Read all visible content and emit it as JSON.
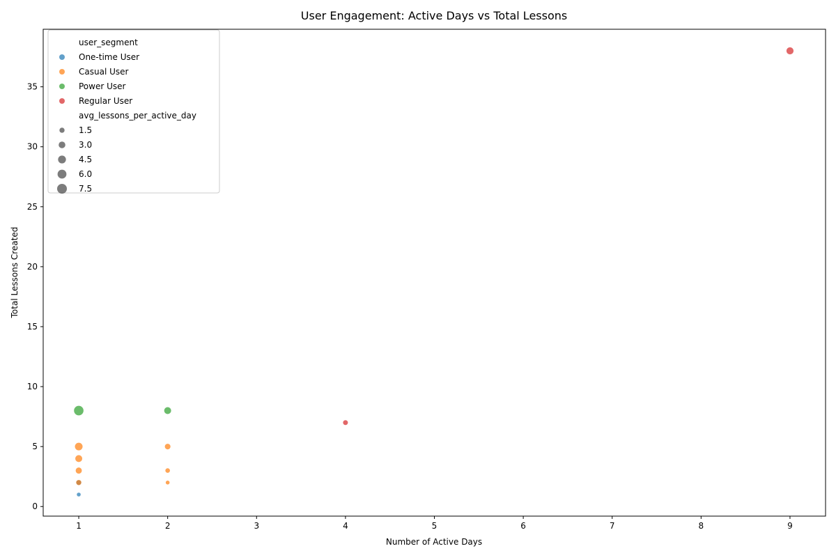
{
  "chart_data": {
    "type": "scatter",
    "title": "User Engagement: Active Days vs Total Lessons",
    "xlabel": "Number of Active Days",
    "ylabel": "Total Lessons Created",
    "xlim": [
      0.6,
      9.4
    ],
    "ylim": [
      -0.8,
      39.8
    ],
    "x_ticks": [
      1,
      2,
      3,
      4,
      5,
      6,
      7,
      8,
      9
    ],
    "y_ticks": [
      0,
      5,
      10,
      15,
      20,
      25,
      30,
      35
    ],
    "grid": false,
    "legend": {
      "placement": "top-left",
      "hue_title": "user_segment",
      "hue_entries": [
        {
          "label": "One-time User",
          "color": "#1f77b4"
        },
        {
          "label": "Casual User",
          "color": "#ff7f0e"
        },
        {
          "label": "Power User",
          "color": "#2ca02c"
        },
        {
          "label": "Regular User",
          "color": "#d62728"
        }
      ],
      "size_title": "avg_lessons_per_active_day",
      "size_entries": [
        {
          "label": "1.5",
          "value": 1.5
        },
        {
          "label": "3.0",
          "value": 3.0
        },
        {
          "label": "4.5",
          "value": 4.5
        },
        {
          "label": "6.0",
          "value": 6.0
        },
        {
          "label": "7.5",
          "value": 7.5
        }
      ]
    },
    "points": [
      {
        "x": 1,
        "y": 1,
        "segment": "One-time User",
        "size": 1
      },
      {
        "x": 1,
        "y": 2,
        "segment": "One-time User",
        "size": 2
      },
      {
        "x": 1,
        "y": 2,
        "segment": "Casual User",
        "size": 2
      },
      {
        "x": 1,
        "y": 3,
        "segment": "Casual User",
        "size": 3
      },
      {
        "x": 1,
        "y": 4,
        "segment": "Casual User",
        "size": 4
      },
      {
        "x": 1,
        "y": 5,
        "segment": "Casual User",
        "size": 5
      },
      {
        "x": 1,
        "y": 8,
        "segment": "Power User",
        "size": 8
      },
      {
        "x": 2,
        "y": 2,
        "segment": "Casual User",
        "size": 1
      },
      {
        "x": 2,
        "y": 3,
        "segment": "Casual User",
        "size": 1.5
      },
      {
        "x": 2,
        "y": 5,
        "segment": "Casual User",
        "size": 2.5
      },
      {
        "x": 2,
        "y": 8,
        "segment": "Power User",
        "size": 4
      },
      {
        "x": 4,
        "y": 7,
        "segment": "Regular User",
        "size": 1.75
      },
      {
        "x": 9,
        "y": 38,
        "segment": "Regular User",
        "size": 4.2
      }
    ]
  }
}
